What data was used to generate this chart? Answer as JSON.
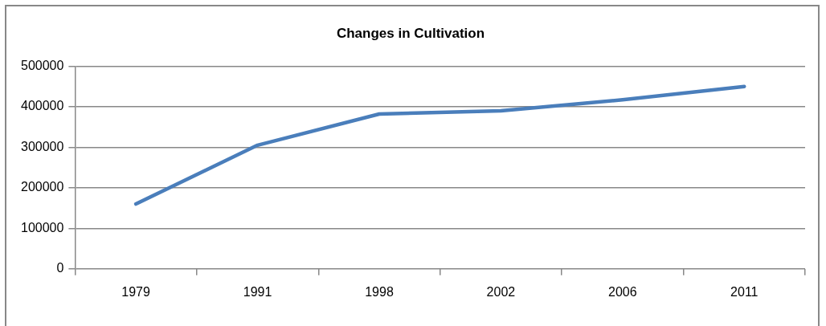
{
  "chart_data": {
    "type": "line",
    "title": "Changes in Cultivation",
    "categories": [
      "1979",
      "1991",
      "1998",
      "2002",
      "2006",
      "2011"
    ],
    "series": [
      {
        "color": "#4a7ebb",
        "values": [
          160000,
          305000,
          382000,
          390000,
          417000,
          450000
        ]
      }
    ],
    "ylim": [
      0,
      500000
    ],
    "yticks": [
      0,
      100000,
      200000,
      300000,
      400000,
      500000
    ],
    "grid": "y",
    "legend": false,
    "marker": "none"
  }
}
